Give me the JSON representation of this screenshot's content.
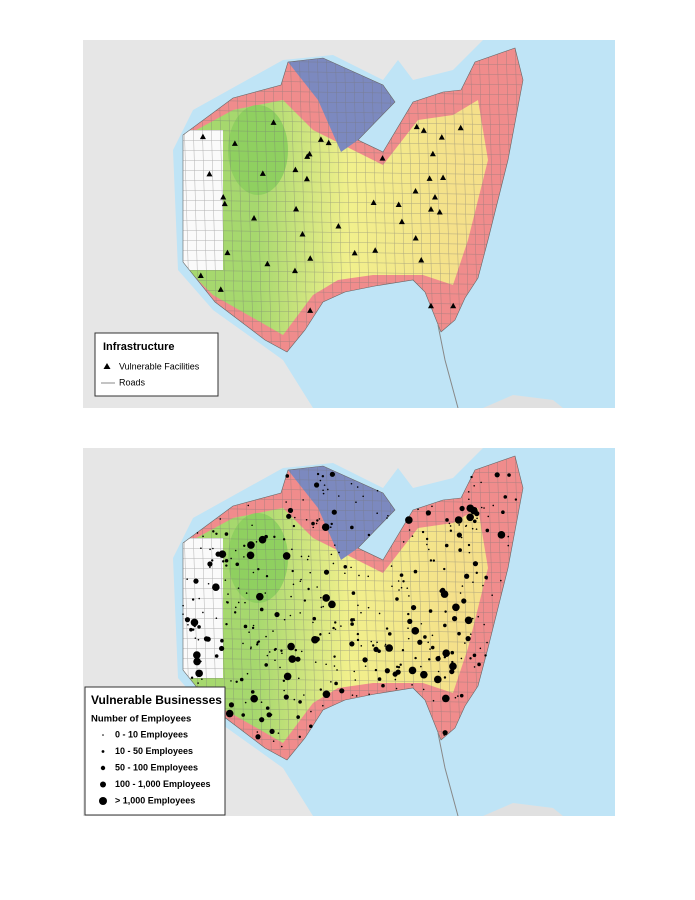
{
  "maps": [
    {
      "legend": {
        "title": "Infrastructure",
        "items": [
          "Vulnerable Facilities",
          "Roads"
        ]
      }
    },
    {
      "legend": {
        "title": "Vulnerable Businesses",
        "subtitle": "Number of Employees",
        "items": [
          "0 - 10 Employees",
          "10 - 50 Employees",
          "50 - 100 Employees",
          "100 - 1,000 Employees",
          "> 1,000 Employees"
        ]
      }
    }
  ]
}
